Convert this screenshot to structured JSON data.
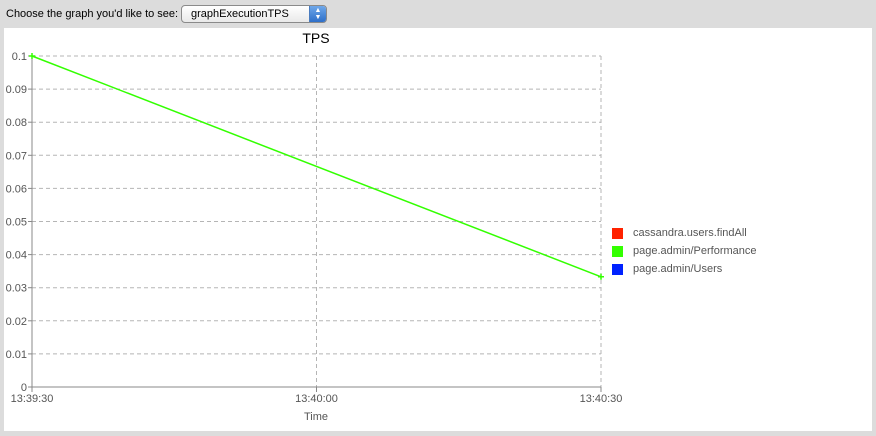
{
  "toolbar": {
    "label": "Choose the graph you'd like to see:",
    "select_value": "graphExecutionTPS"
  },
  "chart_data": {
    "type": "line",
    "title": "TPS",
    "xlabel": "Time",
    "ylabel": "",
    "x_ticks": [
      "13:39:30",
      "13:40:00",
      "13:40:30"
    ],
    "x_range": [
      "13:39:30",
      "13:40:30"
    ],
    "ylim": [
      0,
      0.1
    ],
    "y_ticks": [
      "0",
      "0.01",
      "0.02",
      "0.03",
      "0.04",
      "0.05",
      "0.06",
      "0.07",
      "0.08",
      "0.09",
      "0.1"
    ],
    "grid": true,
    "legend_position": "right",
    "series": [
      {
        "name": "cassandra.users.findAll",
        "color": "#ff2200",
        "x": [],
        "y": []
      },
      {
        "name": "page.admin/Performance",
        "color": "#33ff00",
        "x": [
          "13:39:30",
          "13:40:30"
        ],
        "y": [
          0.1,
          0.0333
        ]
      },
      {
        "name": "page.admin/Users",
        "color": "#0022ff",
        "x": [],
        "y": []
      }
    ]
  }
}
